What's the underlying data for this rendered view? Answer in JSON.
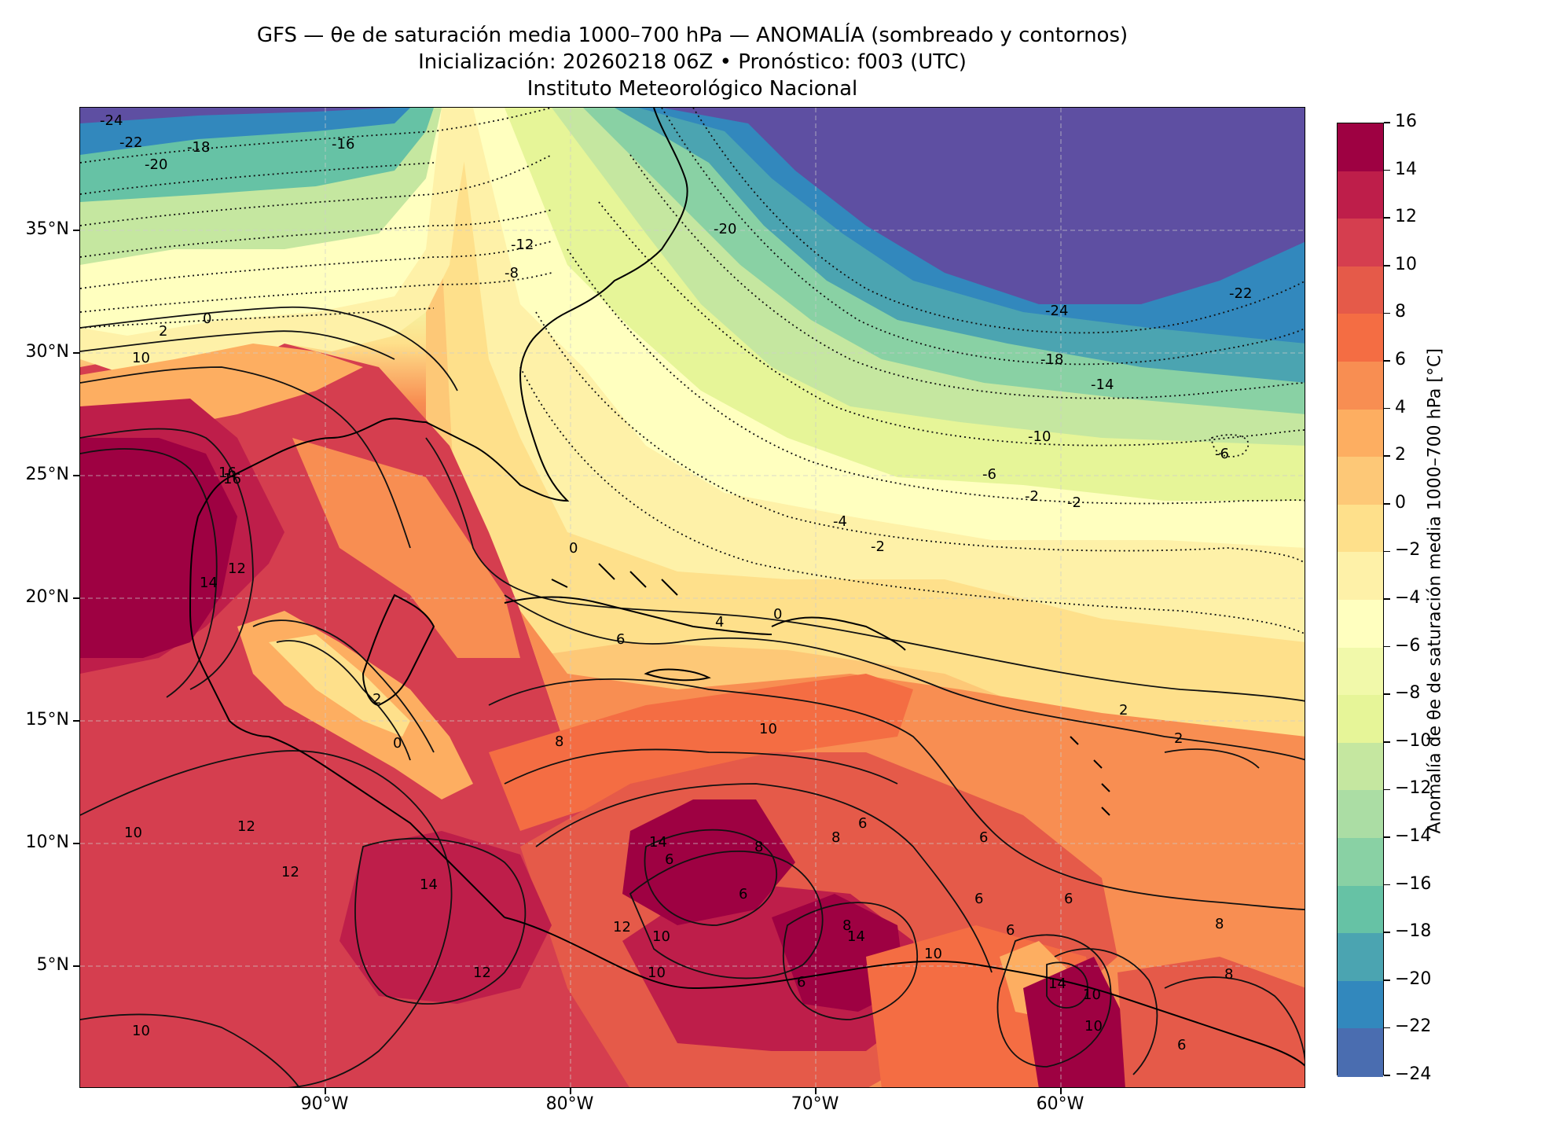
{
  "header": {
    "title": "GFS — θe de saturación media 1000–700 hPa — ANOMALÍA (sombreado y contornos)",
    "subtitle": "Inicialización: 20260218 06Z   •   Pronóstico: f003 (UTC)",
    "institution": "Instituto Meteorológico Nacional"
  },
  "map": {
    "lon_range": [
      -100,
      -50
    ],
    "lat_range": [
      0,
      40
    ],
    "lat_ticks": [
      {
        "value": 35,
        "label": "35°N"
      },
      {
        "value": 30,
        "label": "30°N"
      },
      {
        "value": 25,
        "label": "25°N"
      },
      {
        "value": 20,
        "label": "20°N"
      },
      {
        "value": 15,
        "label": "15°N"
      },
      {
        "value": 10,
        "label": "10°N"
      },
      {
        "value": 5,
        "label": "5°N"
      }
    ],
    "lon_ticks": [
      {
        "value": -90,
        "label": "90°W"
      },
      {
        "value": -80,
        "label": "80°W"
      },
      {
        "value": -70,
        "label": "70°W"
      },
      {
        "value": -60,
        "label": "60°W"
      }
    ],
    "gridlines": true,
    "contour_labels": [
      "-24",
      "-22",
      "-20",
      "-18",
      "-16",
      "-24",
      "-18",
      "-14",
      "-10",
      "-6",
      "-22",
      "-6",
      "-2",
      "-2",
      "-4",
      "-12",
      "-8",
      "0",
      "2",
      "10",
      "16",
      "14",
      "12",
      "0",
      "4",
      "0",
      "6",
      "2",
      "0",
      "10",
      "8",
      "12",
      "10",
      "12",
      "14",
      "12",
      "10",
      "14",
      "6",
      "10",
      "8",
      "6",
      "8",
      "6",
      "14",
      "10",
      "12",
      "10",
      "6",
      "8",
      "6",
      "6",
      "6",
      "-20",
      "-2",
      "8",
      "10",
      "16",
      "8",
      "6",
      "2",
      "2",
      "10",
      "14",
      "6"
    ]
  },
  "colorbar": {
    "label": "Anomalía de θe de saturación media 1000–700 hPa [°C]",
    "tick_labels": [
      "16",
      "14",
      "12",
      "10",
      "8",
      "6",
      "4",
      "2",
      "0",
      "−2",
      "−4",
      "−6",
      "−8",
      "−10",
      "−12",
      "−14",
      "−16",
      "−18",
      "−20",
      "−22",
      "−24"
    ],
    "colors": [
      "#9e0142",
      "#be1e4a",
      "#d53e4f",
      "#e55a49",
      "#f46d43",
      "#f88e52",
      "#fdae61",
      "#fdc877",
      "#fee08b",
      "#fef1a8",
      "#ffffbf",
      "#f1f9aa",
      "#e6f598",
      "#c5e7a0",
      "#abdda4",
      "#89d1a4",
      "#66c2a5",
      "#4ba4b1",
      "#3288bd",
      "#4a6db0",
      "#5e4fa2"
    ]
  }
}
